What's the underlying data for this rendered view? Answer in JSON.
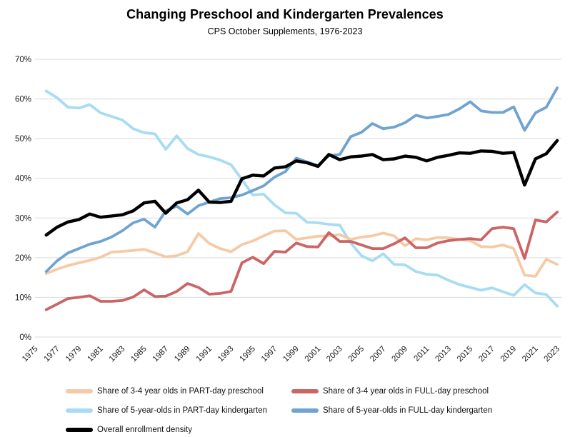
{
  "title": "Changing Preschool and Kindergarten Prevalences",
  "subtitle": "CPS October Supplements, 1976-2023",
  "chart_data": {
    "type": "line",
    "x_label": "",
    "y_label": "",
    "ylim": [
      0,
      70
    ],
    "grid": "horizontal",
    "gridline_color": "#d9d9d9",
    "legend_position": "bottom",
    "y_ticks": [
      0,
      10,
      20,
      30,
      40,
      50,
      60,
      70
    ],
    "y_tick_labels": [
      "0%",
      "10%",
      "20%",
      "30%",
      "40%",
      "50%",
      "60%",
      "70%"
    ],
    "x_tick_years": [
      1975,
      1977,
      1979,
      1981,
      1983,
      1985,
      1987,
      1989,
      1991,
      1993,
      1995,
      1997,
      1999,
      2001,
      2003,
      2005,
      2007,
      2009,
      2011,
      2013,
      2015,
      2017,
      2019,
      2021,
      2023
    ],
    "x": [
      1976,
      1977,
      1978,
      1979,
      1980,
      1981,
      1982,
      1983,
      1984,
      1985,
      1986,
      1987,
      1988,
      1989,
      1990,
      1991,
      1992,
      1993,
      1994,
      1995,
      1996,
      1997,
      1998,
      1999,
      2000,
      2001,
      2002,
      2003,
      2004,
      2005,
      2006,
      2007,
      2008,
      2009,
      2010,
      2011,
      2012,
      2013,
      2014,
      2015,
      2016,
      2017,
      2018,
      2019,
      2020,
      2021,
      2022,
      2023
    ],
    "series": [
      {
        "name": "Share of 3-4 year olds in PART-day preschool",
        "color": "#f5caa7",
        "values": [
          16.0,
          17.1,
          18.0,
          18.7,
          19.3,
          20.1,
          21.4,
          21.6,
          21.8,
          22.1,
          21.2,
          20.2,
          20.5,
          21.5,
          26.1,
          23.6,
          22.3,
          21.5,
          23.3,
          24.2,
          25.5,
          26.7,
          26.8,
          24.6,
          25.0,
          25.4,
          25.5,
          25.8,
          24.6,
          25.2,
          25.5,
          26.2,
          25.5,
          23.0,
          24.8,
          24.5,
          25.1,
          25.0,
          24.6,
          24.3,
          22.8,
          22.7,
          23.2,
          22.3,
          15.6,
          15.3,
          19.6,
          18.3
        ]
      },
      {
        "name": "Share of 3-4 year olds in FULL-day preschool",
        "color": "#cb6565",
        "values": [
          6.9,
          8.3,
          9.7,
          10.0,
          10.4,
          9.0,
          9.0,
          9.2,
          10.1,
          11.9,
          10.2,
          10.3,
          11.5,
          13.5,
          12.5,
          10.8,
          11.0,
          11.5,
          18.7,
          20.1,
          18.5,
          21.6,
          21.4,
          23.7,
          22.8,
          22.7,
          26.3,
          24.1,
          24.1,
          23.2,
          22.3,
          22.3,
          23.5,
          25.0,
          22.5,
          22.5,
          23.7,
          24.3,
          24.6,
          24.8,
          24.5,
          27.3,
          27.7,
          27.3,
          19.8,
          29.5,
          29.0,
          31.5
        ]
      },
      {
        "name": "Share of 5-year-olds in PART-day kindergarten",
        "color": "#a8dcf2",
        "values": [
          62.0,
          60.3,
          57.9,
          57.7,
          58.6,
          56.5,
          55.6,
          54.7,
          52.5,
          51.5,
          51.2,
          47.3,
          50.7,
          47.5,
          46.0,
          45.4,
          44.6,
          43.4,
          39.7,
          35.8,
          36.0,
          33.3,
          31.3,
          31.2,
          28.9,
          28.8,
          28.4,
          28.2,
          23.7,
          20.5,
          19.2,
          21.0,
          18.3,
          18.2,
          16.5,
          15.8,
          15.6,
          14.3,
          13.2,
          12.5,
          11.8,
          12.4,
          11.4,
          10.5,
          13.2,
          11.1,
          10.7,
          7.8
        ]
      },
      {
        "name": "Share of 5-year-olds in FULL-day kindergarten",
        "color": "#6fa3d2",
        "values": [
          16.5,
          19.2,
          21.2,
          22.3,
          23.4,
          24.1,
          25.2,
          26.8,
          28.8,
          29.7,
          27.7,
          31.8,
          33.0,
          31.0,
          33.1,
          34.0,
          34.9,
          35.1,
          35.8,
          36.9,
          38.1,
          40.3,
          41.7,
          45.1,
          44.1,
          43.2,
          45.7,
          46.0,
          50.5,
          51.6,
          53.8,
          52.5,
          52.9,
          54.0,
          55.9,
          55.2,
          55.6,
          56.1,
          57.5,
          59.3,
          57.0,
          56.6,
          56.6,
          58.0,
          52.1,
          56.5,
          57.9,
          62.8
        ]
      },
      {
        "name": "Overall enrollment density",
        "color": "#000000",
        "values": [
          25.7,
          27.7,
          29.0,
          29.6,
          31.0,
          30.2,
          30.5,
          30.8,
          31.8,
          33.8,
          34.2,
          31.2,
          33.8,
          34.6,
          37.0,
          34.0,
          33.9,
          34.2,
          39.9,
          40.8,
          40.6,
          42.6,
          42.9,
          44.4,
          43.9,
          43.0,
          46.0,
          44.7,
          45.4,
          45.6,
          46.0,
          44.7,
          44.9,
          45.6,
          45.3,
          44.4,
          45.3,
          45.8,
          46.4,
          46.3,
          46.9,
          46.8,
          46.3,
          46.5,
          38.3,
          44.9,
          46.2,
          49.5
        ]
      }
    ]
  }
}
